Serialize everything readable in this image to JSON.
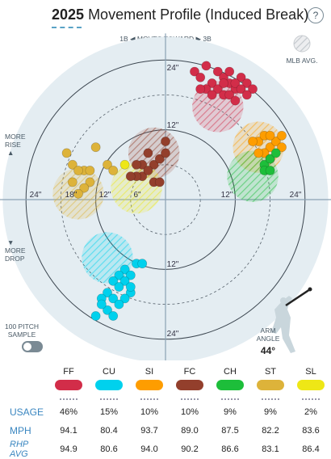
{
  "header": {
    "year": "2025",
    "title": "Movement Profile (Induced Break)",
    "help": "?"
  },
  "labels": {
    "moves_toward": "1B ◀ MOVES TOWARD ▶ 3B",
    "mlb_avg": "MLB AVG.",
    "more_rise": [
      "MORE",
      "RISE"
    ],
    "more_drop": [
      "MORE",
      "DROP"
    ],
    "sample": [
      "100 PITCH",
      "SAMPLE"
    ],
    "arm_angle": [
      "ARM",
      "ANGLE"
    ],
    "arm_angle_value": "44°"
  },
  "rings": {
    "top_24": "24\"",
    "top_12": "12\"",
    "bottom_12": "12\"",
    "bottom_24": "24\"",
    "left_24": "24\"",
    "left_18": "18\"",
    "left_12": "12\"",
    "left_6": "6\"",
    "right_12": "12\"",
    "right_24": "24\""
  },
  "chart_data": {
    "type": "scatter",
    "title": "Movement Profile (Induced Break)",
    "xlabel": "",
    "ylabel": "",
    "xlim": [
      -28,
      28
    ],
    "ylim": [
      -28,
      28
    ],
    "rings_inches": [
      6,
      12,
      18,
      24
    ],
    "legend": "bottom",
    "pitches": [
      {
        "code": "FF",
        "color": "#d22d49",
        "usage": "46%",
        "mph": "94.1",
        "rhp_avg": "94.9",
        "avg": [
          10,
          18
        ],
        "points": [
          [
            5,
            22
          ],
          [
            6,
            21
          ],
          [
            7,
            23
          ],
          [
            8,
            20
          ],
          [
            9,
            22
          ],
          [
            10,
            21
          ],
          [
            11,
            20
          ],
          [
            12,
            19
          ],
          [
            13,
            21
          ],
          [
            14,
            20
          ],
          [
            15,
            19
          ],
          [
            9,
            19
          ],
          [
            10,
            18
          ],
          [
            11,
            18
          ],
          [
            12,
            20
          ],
          [
            13,
            19
          ],
          [
            7,
            19
          ],
          [
            8,
            18
          ],
          [
            11,
            22
          ],
          [
            6,
            19
          ],
          [
            12,
            17
          ],
          [
            14,
            18
          ],
          [
            10,
            20
          ]
        ]
      },
      {
        "code": "CU",
        "color": "#00d1ed",
        "usage": "15%",
        "mph": "80.4",
        "rhp_avg": "80.6",
        "avg": [
          -10,
          -10
        ],
        "points": [
          [
            -7,
            -12
          ],
          [
            -8,
            -13
          ],
          [
            -6,
            -13
          ],
          [
            -9,
            -14
          ],
          [
            -7,
            -14
          ],
          [
            -5,
            -11
          ],
          [
            -6,
            -16
          ],
          [
            -8,
            -15
          ],
          [
            -10,
            -16
          ],
          [
            -11,
            -17
          ],
          [
            -9,
            -17
          ],
          [
            -7,
            -17
          ],
          [
            -6,
            -15
          ],
          [
            -8,
            -18
          ],
          [
            -10,
            -19
          ],
          [
            -11,
            -18
          ],
          [
            -4,
            -11
          ],
          [
            -12,
            -20
          ],
          [
            -9,
            -20
          ]
        ]
      },
      {
        "code": "SI",
        "color": "#fe9d00",
        "usage": "10%",
        "mph": "93.7",
        "rhp_avg": "94.0",
        "avg": [
          17,
          9
        ],
        "points": [
          [
            16,
            10
          ],
          [
            17,
            11
          ],
          [
            18,
            9
          ],
          [
            19,
            10
          ],
          [
            17,
            8
          ],
          [
            18,
            11
          ],
          [
            20,
            9
          ],
          [
            16,
            8
          ],
          [
            15,
            10
          ],
          [
            20,
            11
          ],
          [
            18,
            7
          ]
        ]
      },
      {
        "code": "FC",
        "color": "#933f2c",
        "usage": "10%",
        "mph": "89.0",
        "rhp_avg": "90.2",
        "avg": [
          -2,
          7
        ],
        "points": [
          [
            -3,
            8
          ],
          [
            -2,
            6
          ],
          [
            -4,
            6
          ],
          [
            -1,
            7
          ],
          [
            -4,
            4
          ],
          [
            -3,
            5
          ],
          [
            -2,
            3
          ],
          [
            -5,
            4
          ],
          [
            -6,
            4
          ],
          [
            -1,
            3
          ],
          [
            0,
            8
          ],
          [
            -5,
            6
          ],
          [
            0,
            10
          ]
        ]
      },
      {
        "code": "CH",
        "color": "#1dbe3a",
        "usage": "9%",
        "mph": "87.5",
        "rhp_avg": "86.6",
        "avg": [
          17,
          4
        ],
        "points": [
          [
            17,
            6
          ],
          [
            18,
            7
          ],
          [
            19,
            8
          ],
          [
            17,
            5
          ],
          [
            18,
            5
          ]
        ]
      },
      {
        "code": "ST",
        "color": "#ddb33a",
        "usage": "9%",
        "mph": "82.2",
        "rhp_avg": "83.1",
        "avg": [
          -14,
          1
        ],
        "points": [
          [
            -14,
            5
          ],
          [
            -16,
            6
          ],
          [
            -13,
            5
          ],
          [
            -15,
            5
          ],
          [
            -13,
            3
          ],
          [
            -14,
            2
          ],
          [
            -15,
            1
          ],
          [
            -16,
            3
          ],
          [
            -10,
            6
          ],
          [
            -12,
            9
          ],
          [
            -17,
            8
          ],
          [
            -9,
            5
          ]
        ]
      },
      {
        "code": "SL",
        "color": "#eee716",
        "usage": "2%",
        "mph": "83.6",
        "rhp_avg": "86.4",
        "avg": [
          -8,
          7
        ],
        "points": [
          [
            -7,
            6
          ]
        ]
      }
    ],
    "mlb_avg_zones": [
      {
        "code": "FF",
        "x": 9,
        "y": 16
      },
      {
        "code": "CU",
        "x": -10,
        "y": -10
      },
      {
        "code": "SI",
        "x": 16,
        "y": 9
      },
      {
        "code": "FC",
        "x": -2,
        "y": 8
      },
      {
        "code": "CH",
        "x": 15,
        "y": 4
      },
      {
        "code": "ST",
        "x": -15,
        "y": 1
      },
      {
        "code": "SL",
        "x": -5,
        "y": 2
      }
    ]
  },
  "table": {
    "row_labels": {
      "usage": "USAGE",
      "mph": "MPH",
      "rhp_avg": "RHP AVG"
    }
  }
}
